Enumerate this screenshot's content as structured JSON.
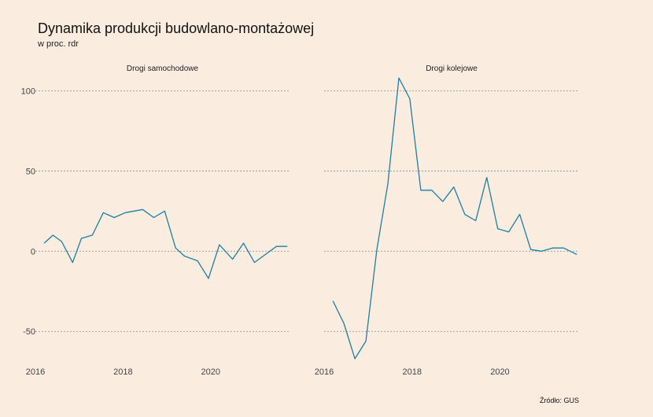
{
  "title": "Dynamika produkcji budowlano-montażowej",
  "subtitle": "w proc. rdr",
  "source": "Źródło: GUS",
  "colors": {
    "background": "#FBECE0",
    "line": "#1A7FA3",
    "grid": "#888888",
    "text": "#222222"
  },
  "chart_data": [
    {
      "type": "line",
      "title": "Drogi samochodowe",
      "xlabel": "",
      "ylabel": "",
      "xlim": [
        2016,
        2021.8
      ],
      "ylim": [
        -70,
        110
      ],
      "y_ticks": [
        -50,
        0,
        50,
        100
      ],
      "x_ticks": [
        2016,
        2018,
        2020
      ],
      "grid": "horizontal-dotted",
      "series": [
        {
          "x": [
            2016.2,
            2016.4,
            2016.6,
            2016.85,
            2017.05,
            2017.3,
            2017.55,
            2017.8,
            2018.05,
            2018.45,
            2018.7,
            2018.95,
            2019.2,
            2019.4,
            2019.7,
            2019.95,
            2020.2,
            2020.5,
            2020.75,
            2021.0,
            2021.25,
            2021.5,
            2021.75
          ],
          "y": [
            5,
            10,
            6,
            -7,
            8,
            10,
            24,
            21,
            24,
            26,
            21,
            25,
            2,
            -3,
            -6,
            -17,
            4,
            -5,
            5,
            -7,
            -2,
            3,
            3
          ]
        }
      ]
    },
    {
      "type": "line",
      "title": "Drogi kolejowe",
      "xlabel": "",
      "ylabel": "",
      "xlim": [
        2016,
        2021.8
      ],
      "ylim": [
        -70,
        110
      ],
      "y_ticks": [
        -50,
        0,
        50,
        100
      ],
      "x_ticks": [
        2016,
        2018,
        2020
      ],
      "grid": "horizontal-dotted",
      "series": [
        {
          "x": [
            2016.2,
            2016.45,
            2016.7,
            2016.95,
            2017.2,
            2017.45,
            2017.7,
            2017.95,
            2018.2,
            2018.45,
            2018.7,
            2018.95,
            2019.2,
            2019.45,
            2019.7,
            2019.95,
            2020.2,
            2020.45,
            2020.7,
            2020.95,
            2021.2,
            2021.45,
            2021.75
          ],
          "y": [
            -31,
            -45,
            -67,
            -56,
            1,
            42,
            108,
            95,
            38,
            38,
            31,
            40,
            23,
            19,
            46,
            14,
            12,
            23,
            1,
            0,
            2,
            2,
            -2
          ]
        }
      ]
    }
  ]
}
